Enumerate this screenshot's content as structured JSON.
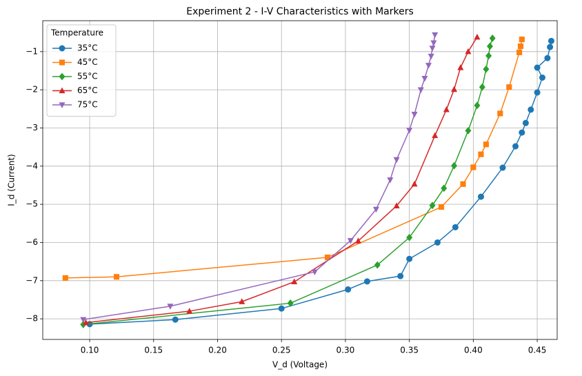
{
  "chart_data": {
    "type": "line",
    "title": "Experiment 2 - I-V Characteristics with Markers",
    "x_label": "V_d (Voltage)",
    "y_label": "I_d (Current)",
    "legend_title": "Temperature",
    "legend": "upper left",
    "grid": true,
    "xlim": [
      0.0633,
      0.4656
    ],
    "ylim": [
      -8.54,
      -0.19
    ],
    "xticks": [
      {
        "value": 0.1,
        "label": "0.10"
      },
      {
        "value": 0.15,
        "label": "0.15"
      },
      {
        "value": 0.2,
        "label": "0.20"
      },
      {
        "value": 0.25,
        "label": "0.25"
      },
      {
        "value": 0.3,
        "label": "0.30"
      },
      {
        "value": 0.35,
        "label": "0.35"
      },
      {
        "value": 0.4,
        "label": "0.40"
      },
      {
        "value": 0.45,
        "label": "0.45"
      }
    ],
    "yticks": [
      {
        "value": -8,
        "label": "−8"
      },
      {
        "value": -7,
        "label": "−7"
      },
      {
        "value": -6,
        "label": "−6"
      },
      {
        "value": -5,
        "label": "−5"
      },
      {
        "value": -4,
        "label": "−4"
      },
      {
        "value": -3,
        "label": "−3"
      },
      {
        "value": -2,
        "label": "−2"
      },
      {
        "value": -1,
        "label": "−1"
      }
    ],
    "series": [
      {
        "name": "35°C",
        "color": "#1f77b4",
        "marker": "circle",
        "x": [
          0.1,
          0.167,
          0.25,
          0.302,
          0.317,
          0.343,
          0.35,
          0.372,
          0.386,
          0.406,
          0.423,
          0.433,
          0.438,
          0.441,
          0.445,
          0.45,
          0.454,
          0.45,
          0.458,
          0.46,
          0.461
        ],
        "values": [
          -8.14,
          -8.02,
          -7.73,
          -7.23,
          -7.02,
          -6.88,
          -6.43,
          -6.0,
          -5.6,
          -4.8,
          -4.04,
          -3.48,
          -3.12,
          -2.87,
          -2.52,
          -2.07,
          -1.68,
          -1.42,
          -1.17,
          -0.88,
          -0.72
        ]
      },
      {
        "name": "45°C",
        "color": "#ff7f0e",
        "marker": "square",
        "x": [
          0.081,
          0.121,
          0.286,
          0.375,
          0.392,
          0.4,
          0.406,
          0.41,
          0.421,
          0.428,
          0.436,
          0.437,
          0.438
        ],
        "values": [
          -6.93,
          -6.9,
          -6.39,
          -5.07,
          -4.47,
          -4.03,
          -3.69,
          -3.43,
          -2.62,
          -1.93,
          -1.02,
          -0.86,
          -0.68
        ]
      },
      {
        "name": "55°C",
        "color": "#2ca02c",
        "marker": "diamond",
        "x": [
          0.095,
          0.257,
          0.325,
          0.35,
          0.368,
          0.377,
          0.385,
          0.396,
          0.403,
          0.407,
          0.41,
          0.412,
          0.413,
          0.415
        ],
        "values": [
          -8.15,
          -7.59,
          -6.59,
          -5.87,
          -5.03,
          -4.58,
          -3.99,
          -3.07,
          -2.41,
          -1.93,
          -1.46,
          -1.11,
          -0.86,
          -0.65
        ]
      },
      {
        "name": "65°C",
        "color": "#d62728",
        "marker": "triangle-up",
        "x": [
          0.097,
          0.178,
          0.219,
          0.26,
          0.31,
          0.34,
          0.354,
          0.37,
          0.379,
          0.385,
          0.39,
          0.396,
          0.403
        ],
        "values": [
          -8.1,
          -7.8,
          -7.55,
          -7.03,
          -5.96,
          -5.04,
          -4.47,
          -3.2,
          -2.52,
          -1.99,
          -1.42,
          -1.0,
          -0.62
        ]
      },
      {
        "name": "75°C",
        "color": "#9467bd",
        "marker": "triangle-down",
        "x": [
          0.095,
          0.163,
          0.276,
          0.304,
          0.324,
          0.335,
          0.34,
          0.35,
          0.354,
          0.359,
          0.362,
          0.365,
          0.367,
          0.368,
          0.369,
          0.37
        ],
        "values": [
          -8.02,
          -7.67,
          -6.77,
          -5.95,
          -5.13,
          -4.36,
          -3.83,
          -3.06,
          -2.64,
          -2.0,
          -1.7,
          -1.36,
          -1.12,
          -0.91,
          -0.77,
          -0.56
        ]
      }
    ]
  }
}
